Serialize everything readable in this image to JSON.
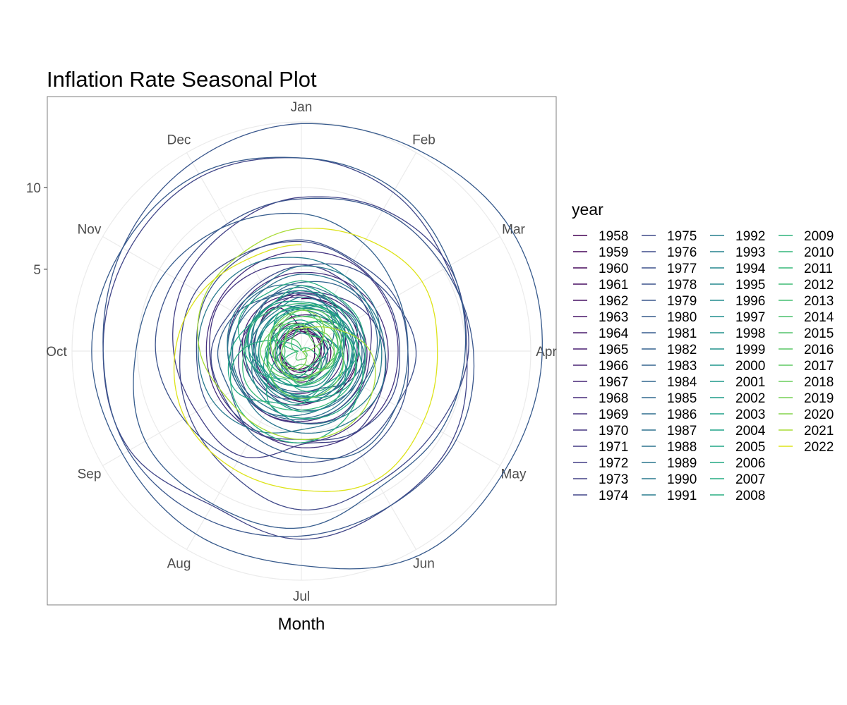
{
  "chart_data": {
    "type": "line",
    "coordinate_system": "polar",
    "title": "Inflation Rate Seasonal Plot",
    "xlabel": "Month",
    "ylabel": "",
    "months": [
      "Jan",
      "Feb",
      "Mar",
      "Apr",
      "May",
      "Jun",
      "Jul",
      "Aug",
      "Sep",
      "Oct",
      "Nov",
      "Dec"
    ],
    "radial_ticks": [
      5,
      10
    ],
    "radial_range": [
      0,
      14
    ],
    "grid": true,
    "legend": {
      "title": "year",
      "placement": "right",
      "columns": 4
    },
    "series": [
      {
        "name": "1958",
        "color": "#440154",
        "values": [
          3.2,
          3.4,
          3.6,
          3.5,
          3.4,
          3.3,
          3.1,
          2.9,
          2.8,
          2.9,
          3.0,
          3.1
        ]
      },
      {
        "name": "1959",
        "color": "#450559",
        "values": [
          1.2,
          1.1,
          0.9,
          0.8,
          0.9,
          1.0,
          1.1,
          1.3,
          1.5,
          1.6,
          1.5,
          1.4
        ]
      },
      {
        "name": "1960",
        "color": "#46085c",
        "values": [
          1.3,
          1.5,
          1.7,
          1.8,
          1.8,
          1.7,
          1.6,
          1.5,
          1.4,
          1.3,
          1.3,
          1.4
        ]
      },
      {
        "name": "1961",
        "color": "#470d60",
        "values": [
          1.5,
          1.4,
          1.3,
          1.2,
          1.1,
          1.0,
          1.1,
          1.2,
          1.3,
          1.2,
          1.1,
          1.0
        ]
      },
      {
        "name": "1962",
        "color": "#471164",
        "values": [
          1.1,
          1.2,
          1.3,
          1.2,
          1.1,
          1.2,
          1.3,
          1.3,
          1.2,
          1.3,
          1.4,
          1.3
        ]
      },
      {
        "name": "1963",
        "color": "#481668",
        "values": [
          1.4,
          1.3,
          1.2,
          1.2,
          1.3,
          1.5,
          1.6,
          1.7,
          1.7,
          1.6,
          1.7,
          1.8
        ]
      },
      {
        "name": "1964",
        "color": "#481a6c",
        "values": [
          1.7,
          1.6,
          1.5,
          1.4,
          1.3,
          1.3,
          1.2,
          1.1,
          1.2,
          1.3,
          1.3,
          1.2
        ]
      },
      {
        "name": "1965",
        "color": "#481f70",
        "values": [
          1.2,
          1.3,
          1.4,
          1.6,
          1.7,
          1.8,
          1.9,
          1.8,
          1.8,
          1.9,
          2.0,
          2.1
        ]
      },
      {
        "name": "1966",
        "color": "#482374",
        "values": [
          2.2,
          2.4,
          2.6,
          2.8,
          3.0,
          3.1,
          3.3,
          3.4,
          3.5,
          3.6,
          3.7,
          3.6
        ]
      },
      {
        "name": "1967",
        "color": "#472777",
        "values": [
          3.4,
          3.2,
          3.0,
          2.6,
          2.5,
          2.5,
          2.6,
          2.7,
          2.8,
          2.9,
          3.0,
          3.1
        ]
      },
      {
        "name": "1968",
        "color": "#472c7a",
        "values": [
          3.5,
          3.7,
          3.9,
          4.0,
          4.1,
          4.2,
          4.3,
          4.4,
          4.4,
          4.5,
          4.6,
          4.7
        ]
      },
      {
        "name": "1969",
        "color": "#46307e",
        "values": [
          4.8,
          5.0,
          5.2,
          5.3,
          5.4,
          5.5,
          5.6,
          5.7,
          5.8,
          5.8,
          5.9,
          6.0
        ]
      },
      {
        "name": "1970",
        "color": "#453581",
        "values": [
          6.1,
          6.2,
          6.0,
          5.9,
          6.0,
          6.0,
          5.9,
          5.6,
          5.6,
          5.6,
          5.8,
          5.6
        ]
      },
      {
        "name": "1971",
        "color": "#443983",
        "values": [
          5.3,
          5.0,
          4.7,
          4.2,
          4.3,
          4.6,
          4.4,
          4.4,
          4.1,
          3.8,
          3.5,
          3.4
        ]
      },
      {
        "name": "1972",
        "color": "#433e85",
        "values": [
          3.3,
          3.3,
          3.4,
          3.4,
          3.3,
          3.0,
          2.9,
          3.2,
          3.3,
          3.5,
          3.5,
          3.4
        ]
      },
      {
        "name": "1973",
        "color": "#424086",
        "values": [
          3.6,
          3.9,
          4.6,
          5.1,
          5.5,
          6.0,
          5.7,
          7.4,
          7.4,
          7.8,
          8.3,
          8.7
        ]
      },
      {
        "name": "1974",
        "color": "#404588",
        "values": [
          9.4,
          10.0,
          10.4,
          10.1,
          10.7,
          10.9,
          11.5,
          10.9,
          12.1,
          12.1,
          12.2,
          12.3
        ]
      },
      {
        "name": "1975",
        "color": "#3f4889",
        "values": [
          11.8,
          11.2,
          10.3,
          10.2,
          9.5,
          9.3,
          9.7,
          8.6,
          7.9,
          7.4,
          7.4,
          6.9
        ]
      },
      {
        "name": "1976",
        "color": "#3e4c8a",
        "values": [
          6.7,
          6.3,
          6.1,
          6.0,
          6.2,
          5.9,
          5.4,
          5.7,
          5.5,
          5.5,
          4.9,
          4.9
        ]
      },
      {
        "name": "1977",
        "color": "#3c508b",
        "values": [
          5.2,
          5.9,
          6.4,
          7.0,
          6.7,
          6.9,
          6.8,
          6.6,
          6.6,
          6.4,
          6.7,
          6.8
        ]
      },
      {
        "name": "1978",
        "color": "#3b528b",
        "values": [
          6.8,
          6.4,
          6.6,
          6.5,
          7.0,
          7.4,
          7.7,
          7.8,
          8.3,
          8.9,
          8.9,
          9.0
        ]
      },
      {
        "name": "1979",
        "color": "#39568c",
        "values": [
          9.3,
          9.9,
          10.1,
          10.5,
          10.9,
          10.9,
          11.3,
          11.8,
          12.2,
          12.1,
          12.6,
          13.3
        ]
      },
      {
        "name": "1980",
        "color": "#375a8c",
        "values": [
          13.9,
          14.2,
          14.8,
          14.7,
          14.4,
          14.4,
          13.1,
          12.9,
          12.6,
          12.8,
          12.6,
          12.5
        ]
      },
      {
        "name": "1981",
        "color": "#365c8d",
        "values": [
          11.8,
          11.4,
          10.5,
          10.0,
          9.8,
          9.6,
          10.8,
          10.8,
          11.0,
          10.1,
          9.6,
          8.9
        ]
      },
      {
        "name": "1982",
        "color": "#34608d",
        "values": [
          8.4,
          7.6,
          6.8,
          6.5,
          6.7,
          7.1,
          6.4,
          5.9,
          5.0,
          5.1,
          4.6,
          3.8
        ]
      },
      {
        "name": "1983",
        "color": "#33638d",
        "values": [
          3.7,
          3.5,
          3.6,
          3.9,
          3.5,
          2.6,
          2.5,
          2.6,
          2.9,
          2.9,
          3.3,
          3.8
        ]
      },
      {
        "name": "1984",
        "color": "#31668e",
        "values": [
          4.2,
          4.6,
          4.8,
          4.6,
          4.2,
          4.2,
          4.2,
          4.3,
          4.3,
          4.3,
          4.1,
          3.9
        ]
      },
      {
        "name": "1985",
        "color": "#30698e",
        "values": [
          3.5,
          3.5,
          3.7,
          3.7,
          3.8,
          3.8,
          3.6,
          3.3,
          3.1,
          3.2,
          3.5,
          3.8
        ]
      },
      {
        "name": "1986",
        "color": "#2e6d8e",
        "values": [
          3.9,
          3.1,
          2.3,
          1.6,
          1.5,
          1.8,
          1.6,
          1.6,
          1.8,
          1.5,
          1.3,
          1.1
        ]
      },
      {
        "name": "1987",
        "color": "#2d708e",
        "values": [
          1.5,
          2.1,
          3.0,
          3.8,
          3.9,
          3.7,
          3.9,
          4.3,
          4.4,
          4.5,
          4.5,
          4.4
        ]
      },
      {
        "name": "1988",
        "color": "#2c728e",
        "values": [
          4.0,
          3.9,
          3.9,
          3.9,
          3.9,
          4.0,
          4.1,
          4.0,
          4.2,
          4.2,
          4.2,
          4.4
        ]
      },
      {
        "name": "1989",
        "color": "#2a768e",
        "values": [
          4.7,
          4.8,
          5.0,
          5.1,
          5.4,
          5.2,
          5.0,
          4.7,
          4.3,
          4.5,
          4.7,
          4.6
        ]
      },
      {
        "name": "1990",
        "color": "#29798e",
        "values": [
          5.2,
          5.3,
          5.2,
          4.7,
          4.4,
          4.7,
          4.8,
          5.6,
          6.2,
          6.3,
          6.3,
          6.1
        ]
      },
      {
        "name": "1991",
        "color": "#287c8e",
        "values": [
          5.7,
          5.3,
          4.9,
          4.9,
          5.0,
          4.7,
          4.4,
          3.8,
          3.4,
          2.9,
          3.0,
          3.1
        ]
      },
      {
        "name": "1992",
        "color": "#277e8e",
        "values": [
          2.6,
          2.8,
          3.2,
          3.2,
          3.0,
          3.1,
          3.2,
          3.1,
          3.0,
          3.2,
          3.0,
          2.9
        ]
      },
      {
        "name": "1993",
        "color": "#25828e",
        "values": [
          3.3,
          3.2,
          3.1,
          3.2,
          3.2,
          3.0,
          2.8,
          2.8,
          2.7,
          2.8,
          2.7,
          2.7
        ]
      },
      {
        "name": "1994",
        "color": "#24868e",
        "values": [
          2.5,
          2.5,
          2.5,
          2.4,
          2.3,
          2.5,
          2.8,
          2.9,
          3.0,
          2.6,
          2.7,
          2.7
        ]
      },
      {
        "name": "1995",
        "color": "#23888e",
        "values": [
          2.8,
          2.9,
          2.9,
          3.1,
          3.2,
          3.0,
          2.8,
          2.6,
          2.5,
          2.8,
          2.6,
          2.5
        ]
      },
      {
        "name": "1996",
        "color": "#228b8d",
        "values": [
          2.7,
          2.7,
          2.8,
          2.9,
          2.9,
          2.8,
          3.0,
          2.9,
          3.0,
          3.0,
          3.3,
          3.3
        ]
      },
      {
        "name": "1997",
        "color": "#218e8d",
        "values": [
          3.0,
          3.0,
          2.8,
          2.5,
          2.2,
          2.3,
          2.2,
          2.2,
          2.2,
          2.1,
          1.8,
          1.7
        ]
      },
      {
        "name": "1998",
        "color": "#21918c",
        "values": [
          1.6,
          1.4,
          1.4,
          1.4,
          1.7,
          1.7,
          1.7,
          1.6,
          1.5,
          1.5,
          1.5,
          1.6
        ]
      },
      {
        "name": "1999",
        "color": "#20928c",
        "values": [
          1.7,
          1.6,
          1.7,
          2.3,
          2.1,
          2.0,
          2.1,
          2.3,
          2.6,
          2.6,
          2.6,
          2.7
        ]
      },
      {
        "name": "2000",
        "color": "#1f968b",
        "values": [
          2.7,
          3.2,
          3.8,
          3.1,
          3.2,
          3.7,
          3.7,
          3.4,
          3.5,
          3.4,
          3.4,
          3.4
        ]
      },
      {
        "name": "2001",
        "color": "#1f998a",
        "values": [
          3.7,
          3.5,
          2.9,
          3.3,
          3.6,
          3.2,
          2.7,
          2.7,
          2.6,
          2.1,
          1.9,
          1.6
        ]
      },
      {
        "name": "2002",
        "color": "#1f9c89",
        "values": [
          1.1,
          1.1,
          1.5,
          1.6,
          1.2,
          1.1,
          1.5,
          1.8,
          1.5,
          2.0,
          2.2,
          2.4
        ]
      },
      {
        "name": "2003",
        "color": "#1fa088",
        "values": [
          2.6,
          3.0,
          3.0,
          2.2,
          2.1,
          2.1,
          2.1,
          2.2,
          2.3,
          2.0,
          1.8,
          1.9
        ]
      },
      {
        "name": "2004",
        "color": "#1fa287",
        "values": [
          1.9,
          1.7,
          1.7,
          2.3,
          3.1,
          3.3,
          3.0,
          2.7,
          2.5,
          3.2,
          3.5,
          3.3
        ]
      },
      {
        "name": "2005",
        "color": "#21a685",
        "values": [
          3.0,
          3.0,
          3.1,
          3.5,
          2.8,
          2.5,
          3.2,
          3.6,
          4.7,
          4.3,
          3.5,
          3.4
        ]
      },
      {
        "name": "2006",
        "color": "#22a884",
        "values": [
          4.0,
          3.6,
          3.4,
          3.5,
          4.2,
          4.3,
          4.1,
          3.8,
          2.1,
          1.3,
          2.0,
          2.5
        ]
      },
      {
        "name": "2007",
        "color": "#25ac82",
        "values": [
          2.1,
          2.4,
          2.8,
          2.6,
          2.7,
          2.7,
          2.4,
          2.0,
          2.8,
          3.5,
          4.3,
          4.1
        ]
      },
      {
        "name": "2008",
        "color": "#28ae80",
        "values": [
          4.3,
          4.0,
          4.0,
          3.9,
          4.2,
          5.0,
          5.6,
          5.4,
          4.9,
          3.7,
          1.1,
          0.1
        ]
      },
      {
        "name": "2009",
        "color": "#2eb37c",
        "values": [
          0.0,
          0.2,
          0.4,
          0.7,
          1.3,
          1.4,
          2.1,
          1.5,
          1.3,
          0.2,
          1.8,
          2.7
        ]
      },
      {
        "name": "2010",
        "color": "#32b67a",
        "values": [
          2.6,
          2.1,
          2.3,
          2.2,
          2.0,
          1.1,
          1.2,
          1.1,
          1.1,
          1.2,
          1.1,
          1.5
        ]
      },
      {
        "name": "2011",
        "color": "#37b878",
        "values": [
          1.6,
          2.1,
          2.7,
          3.2,
          3.6,
          3.6,
          3.6,
          3.8,
          3.9,
          3.5,
          3.4,
          3.0
        ]
      },
      {
        "name": "2012",
        "color": "#3dbc74",
        "values": [
          2.9,
          2.9,
          2.7,
          2.3,
          1.7,
          1.7,
          1.4,
          1.7,
          2.0,
          2.2,
          1.8,
          1.7
        ]
      },
      {
        "name": "2013",
        "color": "#43bf71",
        "values": [
          1.6,
          2.0,
          1.5,
          1.1,
          1.4,
          1.8,
          2.0,
          1.5,
          1.2,
          1.0,
          1.2,
          1.5
        ]
      },
      {
        "name": "2014",
        "color": "#4ac16d",
        "values": [
          1.6,
          1.1,
          1.5,
          2.0,
          2.1,
          2.1,
          2.0,
          1.7,
          1.7,
          1.7,
          1.3,
          0.8
        ]
      },
      {
        "name": "2015",
        "color": "#50c46a",
        "values": [
          0.1,
          0.2,
          0.3,
          0.2,
          0.4,
          0.5,
          0.5,
          0.6,
          0.3,
          0.4,
          0.7,
          1.0
        ]
      },
      {
        "name": "2016",
        "color": "#58c765",
        "values": [
          1.4,
          1.0,
          0.9,
          1.1,
          1.0,
          1.0,
          0.8,
          1.1,
          1.5,
          1.6,
          1.7,
          2.1
        ]
      },
      {
        "name": "2017",
        "color": "#5ec962",
        "values": [
          2.5,
          2.7,
          2.4,
          2.2,
          1.9,
          1.6,
          1.7,
          1.9,
          2.2,
          2.0,
          2.2,
          2.1
        ]
      },
      {
        "name": "2018",
        "color": "#68cd5b",
        "values": [
          2.1,
          2.2,
          2.4,
          2.5,
          2.8,
          2.9,
          2.9,
          2.7,
          2.3,
          2.5,
          2.2,
          1.9
        ]
      },
      {
        "name": "2019",
        "color": "#75d054",
        "values": [
          1.6,
          1.5,
          1.9,
          2.0,
          1.8,
          1.6,
          1.8,
          1.7,
          1.7,
          1.8,
          2.1,
          2.3
        ]
      },
      {
        "name": "2020",
        "color": "#84d44b",
        "values": [
          2.5,
          2.3,
          1.5,
          0.3,
          0.1,
          0.6,
          1.0,
          1.3,
          1.4,
          1.2,
          1.2,
          1.4
        ]
      },
      {
        "name": "2021",
        "color": "#a8db34",
        "values": [
          1.4,
          1.7,
          2.6,
          4.2,
          5.0,
          5.4,
          5.4,
          5.3,
          5.4,
          6.2,
          6.8,
          7.0
        ]
      },
      {
        "name": "2022",
        "color": "#dde318",
        "values": [
          7.5,
          7.9,
          8.5,
          8.3,
          8.6,
          9.1,
          8.5,
          8.3,
          8.2,
          7.7,
          7.1,
          6.5
        ]
      }
    ]
  }
}
